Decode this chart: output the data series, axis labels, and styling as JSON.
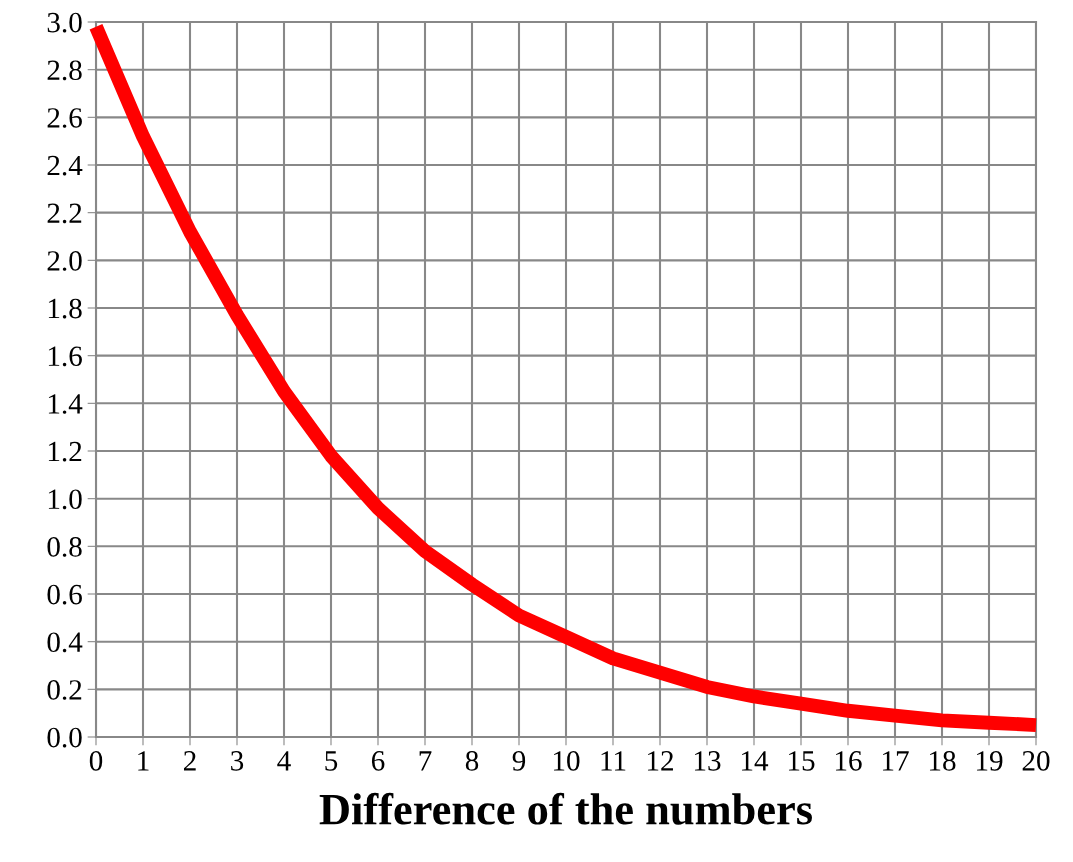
{
  "chart_data": {
    "type": "line",
    "xlabel": "Difference of the numbers",
    "x": [
      0,
      1,
      2,
      3,
      4,
      5,
      6,
      7,
      8,
      9,
      10,
      11,
      12,
      13,
      14,
      15,
      16,
      17,
      18,
      19,
      20
    ],
    "series": [
      {
        "color": "#ff0000",
        "values": [
          2.98,
          2.52,
          2.12,
          1.77,
          1.45,
          1.18,
          0.96,
          0.78,
          0.64,
          0.51,
          0.42,
          0.33,
          0.27,
          0.21,
          0.17,
          0.14,
          0.11,
          0.09,
          0.07,
          0.06,
          0.05
        ]
      }
    ],
    "xlim": [
      0,
      20
    ],
    "xticks": [
      0,
      1,
      2,
      3,
      4,
      5,
      6,
      7,
      8,
      9,
      10,
      11,
      12,
      13,
      14,
      15,
      16,
      17,
      18,
      19,
      20
    ],
    "ylim": [
      0,
      3
    ],
    "yticks": [
      {
        "value": 0,
        "label": "0.0"
      },
      {
        "value": 0.2,
        "label": "0.2"
      },
      {
        "value": 0.4,
        "label": "0.4"
      },
      {
        "value": 0.6,
        "label": "0.6"
      },
      {
        "value": 0.8,
        "label": "0.8"
      },
      {
        "value": 1,
        "label": "1.0"
      },
      {
        "value": 1.2,
        "label": "1.2"
      },
      {
        "value": 1.4,
        "label": "1.4"
      },
      {
        "value": 1.6,
        "label": "1.6"
      },
      {
        "value": 1.8,
        "label": "1.8"
      },
      {
        "value": 2,
        "label": "2.0"
      },
      {
        "value": 2.2,
        "label": "2.2"
      },
      {
        "value": 2.4,
        "label": "2.4"
      },
      {
        "value": 2.6,
        "label": "2.6"
      },
      {
        "value": 2.8,
        "label": "2.8"
      },
      {
        "value": 3,
        "label": "3.0"
      }
    ],
    "grid": true,
    "line_style": "solid"
  }
}
